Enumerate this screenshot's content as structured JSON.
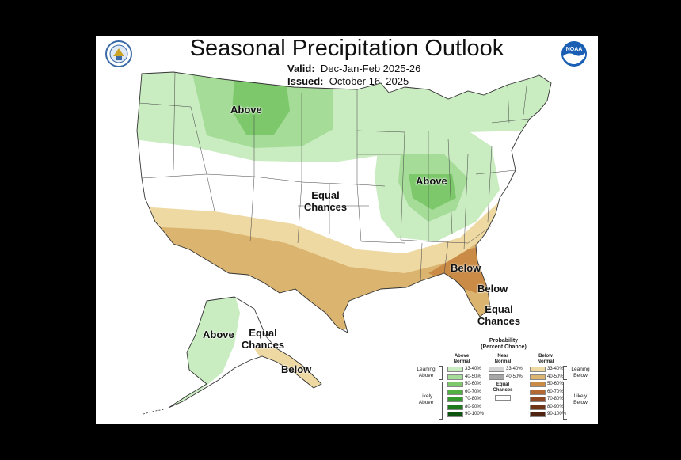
{
  "header": {
    "title": "Seasonal Precipitation Outlook",
    "valid_label": "Valid:",
    "valid_value": "Dec-Jan-Feb 2025-26",
    "issued_label": "Issued:",
    "issued_value": "October 16, 2025"
  },
  "logos": {
    "left": "commerce-seal",
    "right": "noaa-logo",
    "right_text": "NOAA"
  },
  "map_labels": {
    "above_north": "Above",
    "above_ohio": "Above",
    "equal_chances_central_1": "Equal",
    "equal_chances_central_2": "Chances",
    "below_southeast_1": "Below",
    "below_southeast_2": "Below",
    "equal_chances_florida_1": "Equal",
    "equal_chances_florida_2": "Chances",
    "above_alaska": "Above",
    "equal_chances_alaska_1": "Equal",
    "equal_chances_alaska_2": "Chances",
    "below_alaska": "Below"
  },
  "legend": {
    "title_1": "Probability",
    "title_2": "(Percent Chance)",
    "above_header_1": "Above",
    "above_header_2": "Normal",
    "near_header_1": "Near",
    "near_header_2": "Normal",
    "below_header_1": "Below",
    "below_header_2": "Normal",
    "equal_chances_1": "Equal",
    "equal_chances_2": "Chances",
    "leaning_above_1": "Leaning",
    "leaning_above_2": "Above",
    "likely_above_1": "Likely",
    "likely_above_2": "Above",
    "leaning_below_1": "Leaning",
    "leaning_below_2": "Below",
    "likely_below_1": "Likely",
    "likely_below_2": "Below",
    "above_ranges": [
      "33-40%",
      "40-50%",
      "50-60%",
      "60-70%",
      "70-80%",
      "80-90%",
      "90-100%"
    ],
    "near_ranges": [
      "33-40%",
      "40-50%"
    ],
    "below_ranges": [
      "33-40%",
      "40-50%",
      "50-60%",
      "60-70%",
      "70-80%",
      "80-90%",
      "90-100%"
    ],
    "above_colors": [
      "#c9ecc1",
      "#a5dc98",
      "#7cc86b",
      "#52b043",
      "#359a2d",
      "#1f7a1e",
      "#0d5410"
    ],
    "near_colors": [
      "#d4d4d4",
      "#a6a6a6"
    ],
    "below_colors": [
      "#efd9a3",
      "#dbb46f",
      "#c98b46",
      "#b36934",
      "#8f4a24",
      "#6e3516",
      "#4f2410"
    ]
  }
}
